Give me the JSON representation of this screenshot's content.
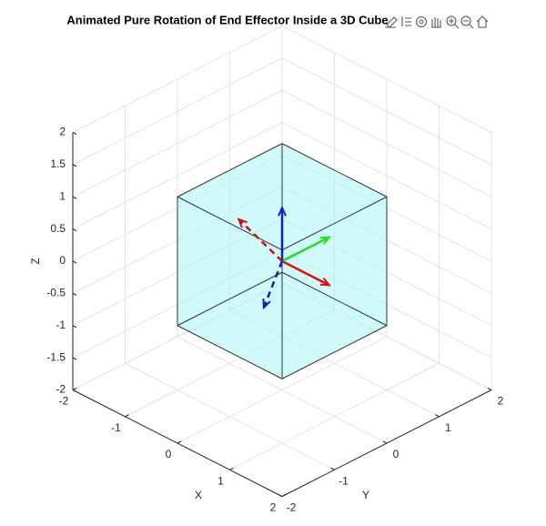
{
  "chart_data": {
    "type": "3d",
    "title": "Animated Pure Rotation of End Effector Inside a 3D Cube",
    "xlabel": "X",
    "ylabel": "Y",
    "zlabel": "Z",
    "xlim": [
      -2,
      2
    ],
    "ylim": [
      -2,
      2
    ],
    "zlim": [
      -2,
      2
    ],
    "xticks": [
      -2,
      -1,
      0,
      1,
      2
    ],
    "yticks": [
      -2,
      -1,
      0,
      1,
      2
    ],
    "zticks": [
      -2,
      -1.5,
      -1,
      -0.5,
      0,
      0.5,
      1,
      1.5,
      2
    ],
    "grid": true,
    "cube": {
      "min": [
        -1,
        -1,
        -1
      ],
      "max": [
        1,
        1,
        1
      ],
      "color": "#aaf4f6",
      "edge_color": "#333333"
    },
    "vectors": [
      {
        "color": "#dd1111",
        "dashed": false,
        "dir": [
          0.9,
          0,
          0
        ]
      },
      {
        "color": "#22dd22",
        "dashed": false,
        "dir": [
          0,
          0.9,
          0
        ]
      },
      {
        "color": "#1020c8",
        "dashed": false,
        "dir": [
          0,
          0,
          0.83
        ]
      },
      {
        "color": "#cc1111",
        "dashed": true,
        "dir": [
          -0.5,
          -0.33,
          0.58
        ]
      },
      {
        "color": "#1020b0",
        "dashed": true,
        "dir": [
          0.2,
          -0.55,
          -0.41
        ]
      }
    ]
  }
}
